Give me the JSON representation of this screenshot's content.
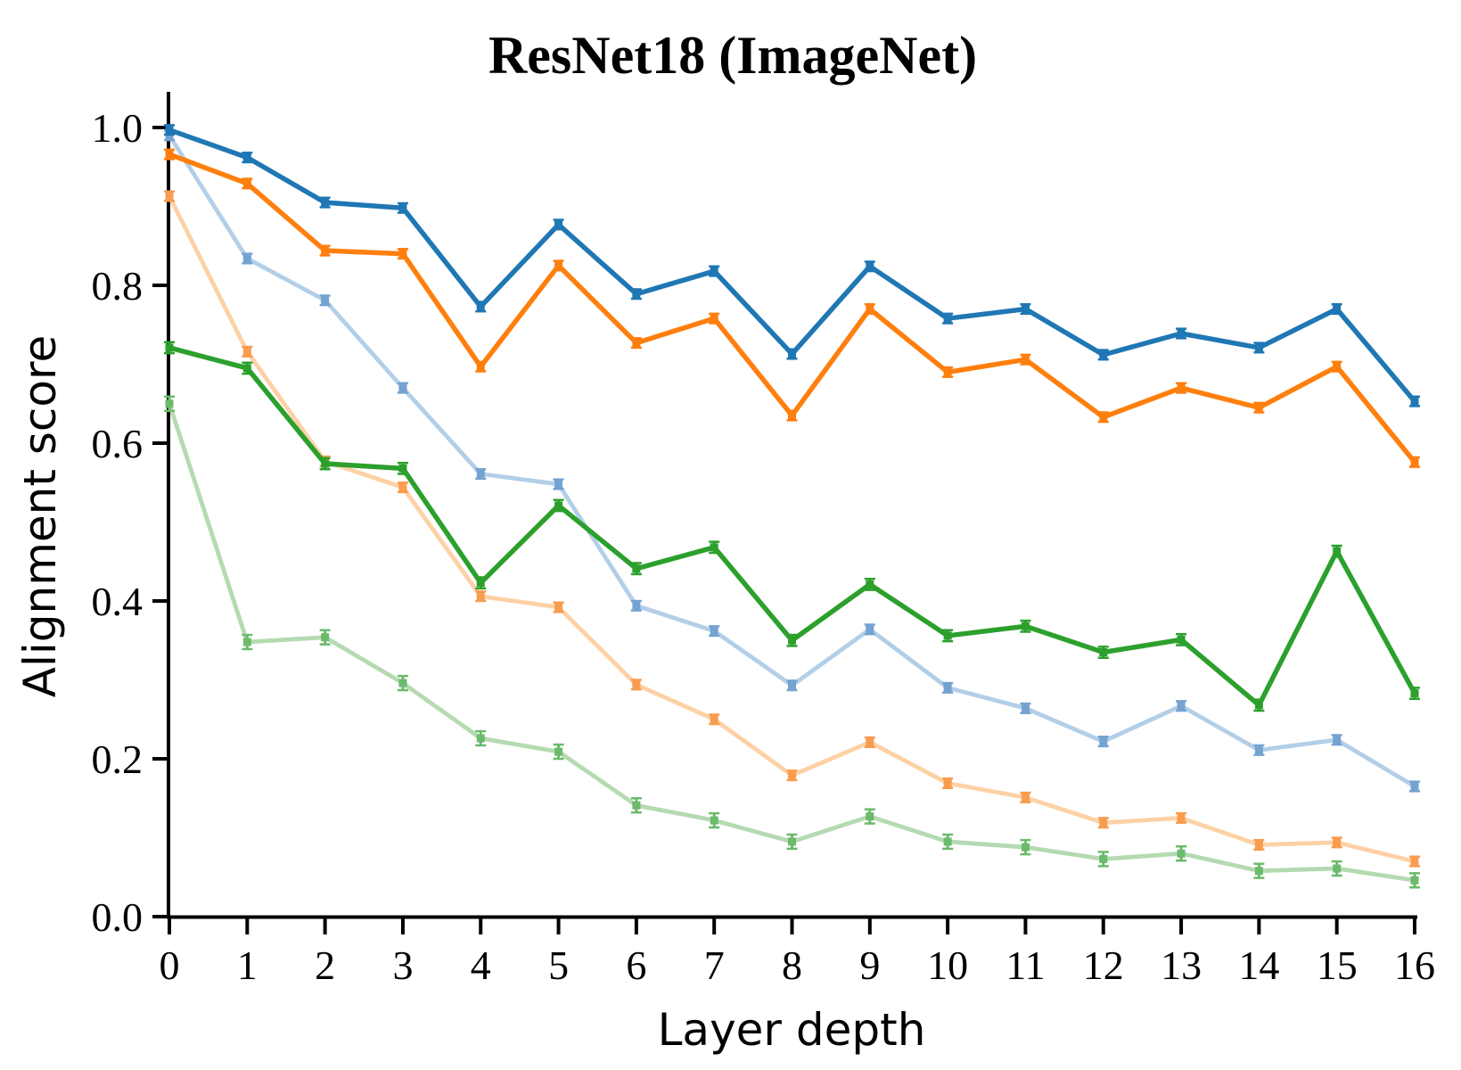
{
  "figure": {
    "title": "ResNet18 (ImageNet)",
    "xlabel": "Layer depth",
    "ylabel": "Alignment score"
  },
  "chart_data": {
    "type": "line",
    "title": "ResNet18 (ImageNet)",
    "xlabel": "Layer depth",
    "ylabel": "Alignment score",
    "grid": false,
    "legend": "none",
    "xlim": [
      0,
      16
    ],
    "ylim": [
      0.0,
      1.0
    ],
    "xticks": [
      "0",
      "1",
      "2",
      "3",
      "4",
      "5",
      "6",
      "7",
      "8",
      "9",
      "10",
      "11",
      "12",
      "13",
      "14",
      "15",
      "16"
    ],
    "yticks": [
      "0.0",
      "0.2",
      "0.4",
      "0.6",
      "0.8",
      "1.0"
    ],
    "x": [
      0,
      1,
      2,
      3,
      4,
      5,
      6,
      7,
      8,
      9,
      10,
      11,
      12,
      13,
      14,
      15,
      16
    ],
    "axis_color": "#000000",
    "series": [
      {
        "name": "light-blue",
        "color": "#b3cfe8",
        "marker_color": "#74a3d1",
        "linewidth": 4.8,
        "error": 0.006,
        "values": [
          0.99,
          0.834,
          0.781,
          0.67,
          0.561,
          0.548,
          0.394,
          0.362,
          0.293,
          0.364,
          0.29,
          0.264,
          0.222,
          0.267,
          0.211,
          0.224,
          0.165
        ]
      },
      {
        "name": "light-orange",
        "color": "#fdd1a5",
        "marker_color": "#f89c4f",
        "linewidth": 4.8,
        "error": 0.006,
        "values": [
          0.913,
          0.716,
          0.577,
          0.544,
          0.406,
          0.392,
          0.294,
          0.25,
          0.179,
          0.221,
          0.169,
          0.151,
          0.119,
          0.125,
          0.091,
          0.094,
          0.07
        ]
      },
      {
        "name": "light-green",
        "color": "#b5dab1",
        "marker_color": "#6cba6c",
        "linewidth": 4.8,
        "error": 0.009,
        "values": [
          0.65,
          0.348,
          0.354,
          0.296,
          0.226,
          0.209,
          0.141,
          0.122,
          0.095,
          0.127,
          0.095,
          0.088,
          0.073,
          0.08,
          0.058,
          0.061,
          0.046
        ]
      },
      {
        "name": "dark-blue",
        "color": "#1f77b4",
        "marker_color": "#1f77b4",
        "linewidth": 5.5,
        "error": 0.006,
        "values": [
          0.997,
          0.962,
          0.905,
          0.898,
          0.773,
          0.877,
          0.789,
          0.818,
          0.713,
          0.824,
          0.758,
          0.77,
          0.712,
          0.739,
          0.721,
          0.77,
          0.653
        ]
      },
      {
        "name": "dark-orange",
        "color": "#ff7f0e",
        "marker_color": "#ff7f0e",
        "linewidth": 5.5,
        "error": 0.006,
        "values": [
          0.966,
          0.929,
          0.844,
          0.84,
          0.697,
          0.825,
          0.727,
          0.758,
          0.635,
          0.77,
          0.69,
          0.706,
          0.633,
          0.67,
          0.645,
          0.697,
          0.576
        ]
      },
      {
        "name": "dark-green",
        "color": "#2ca02c",
        "marker_color": "#2ca02c",
        "linewidth": 5.5,
        "error": 0.007,
        "values": [
          0.721,
          0.695,
          0.574,
          0.568,
          0.423,
          0.521,
          0.441,
          0.468,
          0.35,
          0.421,
          0.356,
          0.368,
          0.335,
          0.351,
          0.268,
          0.463,
          0.283
        ]
      }
    ]
  }
}
